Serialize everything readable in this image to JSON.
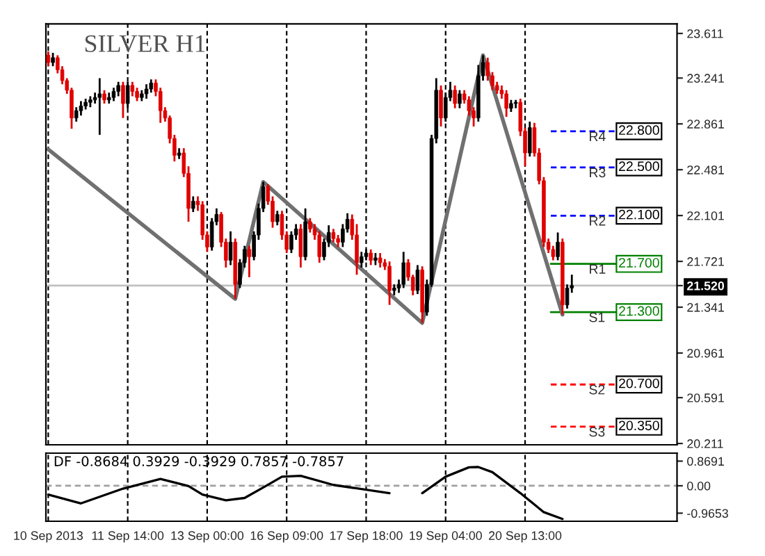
{
  "chart_data": [
    {
      "type": "candlestick",
      "title": "SILVER H1",
      "categories": [
        null,
        null,
        null,
        null,
        null,
        null,
        null,
        null,
        null,
        null,
        null,
        null,
        null,
        null,
        null,
        null,
        null,
        null,
        null,
        null,
        null,
        null,
        null,
        null,
        null,
        null,
        null,
        null,
        null,
        null,
        null,
        null,
        null,
        null,
        null,
        null,
        null,
        null,
        null,
        null,
        null,
        null,
        null,
        null,
        null,
        null,
        null,
        null,
        null,
        null,
        null,
        null,
        null,
        null,
        null,
        null,
        null,
        null,
        null,
        null,
        null,
        null,
        null,
        null,
        null,
        null,
        null,
        null,
        null,
        null,
        null,
        null,
        null,
        null,
        null,
        null,
        null,
        null,
        null,
        null,
        null,
        null,
        null,
        null,
        null,
        null,
        null,
        null,
        null,
        null,
        null,
        null,
        null,
        null,
        null,
        null,
        null,
        null,
        null,
        null,
        null,
        null,
        null,
        null,
        null,
        null,
        null,
        null,
        null,
        null,
        null,
        null,
        null,
        null,
        null,
        null,
        null,
        null,
        null,
        null,
        null,
        null,
        null,
        null,
        null,
        null,
        null,
        null,
        null,
        null,
        null,
        null,
        null,
        null,
        null
      ],
      "ohlc": [
        [
          23.43,
          23.46,
          23.34,
          23.37
        ],
        [
          23.37,
          23.45,
          23.34,
          23.41
        ],
        [
          23.41,
          23.43,
          23.28,
          23.31
        ],
        [
          23.31,
          23.34,
          23.19,
          23.22
        ],
        [
          23.22,
          23.24,
          23.11,
          23.14
        ],
        [
          23.14,
          23.16,
          22.82,
          22.91
        ],
        [
          22.91,
          23.0,
          22.88,
          22.97
        ],
        [
          22.97,
          23.05,
          22.93,
          23.01
        ],
        [
          23.01,
          23.07,
          22.98,
          23.04
        ],
        [
          23.04,
          23.09,
          23.0,
          23.06
        ],
        [
          23.06,
          23.12,
          23.03,
          23.08
        ],
        [
          23.08,
          23.24,
          22.77,
          23.11
        ],
        [
          23.11,
          23.14,
          23.03,
          23.06
        ],
        [
          23.06,
          23.12,
          23.03,
          23.08
        ],
        [
          23.08,
          23.16,
          23.05,
          23.13
        ],
        [
          23.13,
          23.21,
          23.09,
          23.18
        ],
        [
          23.18,
          23.21,
          22.91,
          23.03
        ],
        [
          23.03,
          23.21,
          22.99,
          23.18
        ],
        [
          23.18,
          23.21,
          23.09,
          23.13
        ],
        [
          23.13,
          23.16,
          23.05,
          23.08
        ],
        [
          23.08,
          23.14,
          23.05,
          23.11
        ],
        [
          23.11,
          23.19,
          23.07,
          23.15
        ],
        [
          23.15,
          23.23,
          23.12,
          23.2
        ],
        [
          23.2,
          23.23,
          23.09,
          23.13
        ],
        [
          23.13,
          23.16,
          22.87,
          22.97
        ],
        [
          22.97,
          23.0,
          22.88,
          22.91
        ],
        [
          22.91,
          22.93,
          22.7,
          22.74
        ],
        [
          22.74,
          22.77,
          22.55,
          22.6
        ],
        [
          22.6,
          22.66,
          22.57,
          22.62
        ],
        [
          22.62,
          22.66,
          22.42,
          22.45
        ],
        [
          22.45,
          22.51,
          22.05,
          22.16
        ],
        [
          22.16,
          22.26,
          22.13,
          22.22
        ],
        [
          22.22,
          22.26,
          22.14,
          22.19
        ],
        [
          22.19,
          22.22,
          21.9,
          21.94
        ],
        [
          21.94,
          21.97,
          21.8,
          21.84
        ],
        [
          21.84,
          22.08,
          21.81,
          22.05
        ],
        [
          22.05,
          22.16,
          22.02,
          22.11
        ],
        [
          22.11,
          22.13,
          21.84,
          21.88
        ],
        [
          21.88,
          21.91,
          21.67,
          21.73
        ],
        [
          21.73,
          21.97,
          21.69,
          21.88
        ],
        [
          21.88,
          21.91,
          21.41,
          21.53
        ],
        [
          21.53,
          21.74,
          21.5,
          21.71
        ],
        [
          21.71,
          21.85,
          21.67,
          21.82
        ],
        [
          21.82,
          21.85,
          21.59,
          21.76
        ],
        [
          21.76,
          21.97,
          21.73,
          21.94
        ],
        [
          21.94,
          22.2,
          21.9,
          22.16
        ],
        [
          22.16,
          22.38,
          22.13,
          22.34
        ],
        [
          22.34,
          22.36,
          22.19,
          22.22
        ],
        [
          22.22,
          22.26,
          22.0,
          22.05
        ],
        [
          22.05,
          22.14,
          22.02,
          22.11
        ],
        [
          22.11,
          22.14,
          21.9,
          21.94
        ],
        [
          21.94,
          21.97,
          21.79,
          21.82
        ],
        [
          21.82,
          21.97,
          21.79,
          21.94
        ],
        [
          21.94,
          22.03,
          21.9,
          21.99
        ],
        [
          21.99,
          22.03,
          21.67,
          21.76
        ],
        [
          21.76,
          22.16,
          21.73,
          22.05
        ],
        [
          22.05,
          22.08,
          21.96,
          21.99
        ],
        [
          21.99,
          22.03,
          21.9,
          21.94
        ],
        [
          21.94,
          21.97,
          21.71,
          21.76
        ],
        [
          21.76,
          21.91,
          21.73,
          21.88
        ],
        [
          21.88,
          22.02,
          21.84,
          21.96
        ],
        [
          21.96,
          21.99,
          21.88,
          21.91
        ],
        [
          21.91,
          21.94,
          21.84,
          21.88
        ],
        [
          21.88,
          22.03,
          21.84,
          21.99
        ],
        [
          21.99,
          22.12,
          21.96,
          22.07
        ],
        [
          22.07,
          22.11,
          21.9,
          21.94
        ],
        [
          21.94,
          22.03,
          21.61,
          21.71
        ],
        [
          21.71,
          21.8,
          21.67,
          21.76
        ],
        [
          21.76,
          21.82,
          21.73,
          21.79
        ],
        [
          21.79,
          21.82,
          21.69,
          21.73
        ],
        [
          21.73,
          21.79,
          21.69,
          21.75
        ],
        [
          21.75,
          21.79,
          21.67,
          21.71
        ],
        [
          21.71,
          21.74,
          21.65,
          21.68
        ],
        [
          21.68,
          21.72,
          21.36,
          21.48
        ],
        [
          21.48,
          21.53,
          21.44,
          21.5
        ],
        [
          21.5,
          21.57,
          21.46,
          21.53
        ],
        [
          21.53,
          21.8,
          21.5,
          21.71
        ],
        [
          21.71,
          21.74,
          21.56,
          21.59
        ],
        [
          21.59,
          21.61,
          21.44,
          21.48
        ],
        [
          21.48,
          21.69,
          21.45,
          21.65
        ],
        [
          21.65,
          21.68,
          21.21,
          21.3
        ],
        [
          21.3,
          21.57,
          21.27,
          21.53
        ],
        [
          21.53,
          22.77,
          21.51,
          22.74
        ],
        [
          22.74,
          23.24,
          22.7,
          23.14
        ],
        [
          23.14,
          23.18,
          22.84,
          22.91
        ],
        [
          22.91,
          23.12,
          22.88,
          23.08
        ],
        [
          23.08,
          23.21,
          23.05,
          23.14
        ],
        [
          23.14,
          23.18,
          22.99,
          23.03
        ],
        [
          23.03,
          23.14,
          22.99,
          23.11
        ],
        [
          23.11,
          23.14,
          23.03,
          23.06
        ],
        [
          23.06,
          23.09,
          22.93,
          22.97
        ],
        [
          22.97,
          23.0,
          22.84,
          22.91
        ],
        [
          22.91,
          23.35,
          22.88,
          23.26
        ],
        [
          23.26,
          23.43,
          23.22,
          23.37
        ],
        [
          23.37,
          23.41,
          23.22,
          23.26
        ],
        [
          23.26,
          23.29,
          23.14,
          23.18
        ],
        [
          23.18,
          23.21,
          23.11,
          23.14
        ],
        [
          23.14,
          23.18,
          23.07,
          23.11
        ],
        [
          23.11,
          23.14,
          22.92,
          22.99
        ],
        [
          22.99,
          23.06,
          22.96,
          23.03
        ],
        [
          23.03,
          23.06,
          22.99,
          23.04
        ],
        [
          23.04,
          23.07,
          22.76,
          22.8
        ],
        [
          22.8,
          22.83,
          22.51,
          22.62
        ],
        [
          22.62,
          22.88,
          22.59,
          22.83
        ],
        [
          22.83,
          22.87,
          22.59,
          22.62
        ],
        [
          22.62,
          22.66,
          22.36,
          22.39
        ],
        [
          22.39,
          22.42,
          21.84,
          21.88
        ],
        [
          21.88,
          21.91,
          21.79,
          21.82
        ],
        [
          21.82,
          21.85,
          21.73,
          21.76
        ],
        [
          21.76,
          21.96,
          21.73,
          21.88
        ],
        [
          21.88,
          21.91,
          21.28,
          21.36
        ],
        [
          21.36,
          21.53,
          21.33,
          21.5
        ],
        [
          21.5,
          21.61,
          21.46,
          21.52
        ],
        null,
        null,
        null,
        null,
        null,
        null,
        null,
        null,
        null,
        null,
        null,
        null,
        null,
        null,
        null,
        null,
        null,
        null,
        null,
        null,
        null,
        null
      ],
      "colors": [
        "#e00000",
        "#000000",
        "#e00000",
        "#e00000",
        "#e00000",
        "#e00000",
        "#000000",
        "#000000",
        "#000000",
        "#000000",
        "#000000",
        "#000000",
        "#e00000",
        "#000000",
        "#000000",
        "#000000",
        "#e00000",
        "#000000",
        "#e00000",
        "#e00000",
        "#000000",
        "#000000",
        "#000000",
        "#e00000",
        "#e00000",
        "#e00000",
        "#e00000",
        "#e00000",
        "#000000",
        "#e00000",
        "#e00000",
        "#000000",
        "#e00000",
        "#e00000",
        "#e00000",
        "#000000",
        "#000000",
        "#e00000",
        "#e00000",
        "#000000",
        "#e00000",
        "#000000",
        "#000000",
        "#e00000",
        "#000000",
        "#000000",
        "#000000",
        "#e00000",
        "#e00000",
        "#000000",
        "#e00000",
        "#e00000",
        "#000000",
        "#000000",
        "#e00000",
        "#000000",
        "#e00000",
        "#e00000",
        "#e00000",
        "#000000",
        "#000000",
        "#e00000",
        "#e00000",
        "#000000",
        "#000000",
        "#e00000",
        "#e00000",
        "#000000",
        "#000000",
        "#e00000",
        "#000000",
        "#e00000",
        "#e00000",
        "#e00000",
        "#000000",
        "#000000",
        "#000000",
        "#e00000",
        "#e00000",
        "#000000",
        "#e00000",
        "#000000",
        "#000000",
        "#000000",
        "#e00000",
        "#000000",
        "#000000",
        "#e00000",
        "#000000",
        "#e00000",
        "#e00000",
        "#e00000",
        "#000000",
        "#000000",
        "#e00000",
        "#e00000",
        "#e00000",
        "#e00000",
        "#e00000",
        "#000000",
        "#000000",
        "#e00000",
        "#e00000",
        "#000000",
        "#e00000",
        "#e00000",
        "#e00000",
        "#e00000",
        "#e00000",
        "#000000",
        "#e00000",
        "#000000",
        "#000000",
        null,
        null,
        null,
        null,
        null,
        null,
        null,
        null,
        null,
        null,
        null,
        null,
        null,
        null,
        null,
        null,
        null,
        null,
        null,
        null,
        null,
        null
      ],
      "series": [
        {
          "type": "line",
          "color": "#707070",
          "values": [
            22.65,
            null,
            null,
            null,
            null,
            null,
            null,
            null,
            null,
            null,
            null,
            null,
            null,
            null,
            null,
            null,
            null,
            null,
            null,
            null,
            null,
            null,
            null,
            null,
            null,
            null,
            null,
            null,
            null,
            null,
            null,
            null,
            null,
            null,
            null,
            null,
            null,
            null,
            null,
            null,
            21.41,
            null,
            null,
            null,
            null,
            null,
            22.38,
            null,
            null,
            null,
            null,
            null,
            null,
            null,
            null,
            null,
            null,
            null,
            null,
            null,
            null,
            null,
            null,
            null,
            null,
            null,
            null,
            null,
            null,
            null,
            null,
            null,
            null,
            null,
            null,
            null,
            null,
            null,
            null,
            null,
            21.21,
            null,
            null,
            null,
            null,
            null,
            null,
            null,
            null,
            null,
            null,
            null,
            null,
            23.43,
            null,
            null,
            null,
            null,
            null,
            null,
            null,
            null,
            null,
            null,
            null,
            null,
            null,
            null,
            null,
            null,
            21.28,
            null,
            null,
            null,
            null,
            null,
            null,
            null,
            null,
            null,
            null,
            null,
            null,
            null,
            null,
            null,
            null,
            null,
            null,
            null,
            null,
            null,
            null,
            null,
            null
          ]
        }
      ],
      "ylim": [
        20.2,
        23.69
      ],
      "yticks": [
        23.611,
        23.241,
        22.861,
        22.481,
        22.101,
        21.721,
        21.341,
        20.961,
        20.591,
        20.211,
        {
          "value": 21.52,
          "label": "21.520"
        }
      ],
      "tick_labels": "y",
      "grid": "x",
      "ref_lines": [
        {
          "axis": "y",
          "value": 21.52,
          "color": "#c0c0c0",
          "line_style": "solid"
        },
        {
          "axis": "y",
          "value": 22.8,
          "label": "22.800",
          "color": "#0000ff",
          "line_style": "dashed"
        },
        {
          "axis": "y",
          "value": 22.5,
          "label": "22.500",
          "color": "#0000ff",
          "line_style": "dashed"
        },
        {
          "axis": "y",
          "value": 22.1,
          "label": "22.100",
          "color": "#0000ff",
          "line_style": "dashed"
        },
        {
          "axis": "y",
          "value": 21.7,
          "label": "21.700",
          "color": "#008000",
          "line_style": "solid"
        },
        {
          "axis": "y",
          "value": 21.3,
          "label": "21.300",
          "color": "#008000",
          "line_style": "solid"
        },
        {
          "axis": "y",
          "value": 20.7,
          "label": "20.700",
          "color": "#ff0000",
          "line_style": "dashed"
        },
        {
          "axis": "y",
          "value": 20.35,
          "label": "20.350",
          "color": "#ff0000",
          "line_style": "dashed"
        }
      ],
      "annotations": [
        {
          "text": "R4",
          "y": 22.8
        },
        {
          "text": "R3",
          "y": 22.5
        },
        {
          "text": "R2",
          "y": 22.1
        },
        {
          "text": "R1",
          "y": 21.7
        },
        {
          "text": "S1",
          "y": 21.3
        },
        {
          "text": "S2",
          "y": 20.7
        },
        {
          "text": "S3",
          "y": 20.35
        }
      ]
    },
    {
      "type": "line",
      "title": "DF -0.8684 0.3929 -0.3929 0.7857 -0.7857",
      "categories": [
        "10 Sep 2013",
        null,
        null,
        null,
        null,
        null,
        null,
        null,
        null,
        null,
        null,
        null,
        null,
        null,
        null,
        null,
        null,
        "11 Sep 14:00",
        null,
        null,
        null,
        null,
        null,
        null,
        null,
        null,
        null,
        null,
        null,
        null,
        null,
        null,
        null,
        null,
        "13 Sep 00:00",
        null,
        null,
        null,
        null,
        null,
        null,
        null,
        null,
        null,
        null,
        null,
        null,
        null,
        null,
        null,
        null,
        "16 Sep 09:00",
        null,
        null,
        null,
        null,
        null,
        null,
        null,
        null,
        null,
        null,
        null,
        null,
        null,
        null,
        null,
        null,
        "17 Sep 18:00",
        null,
        null,
        null,
        null,
        null,
        null,
        null,
        null,
        null,
        null,
        null,
        null,
        null,
        null,
        null,
        null,
        "19 Sep 04:00",
        null,
        null,
        null,
        null,
        null,
        null,
        null,
        null,
        null,
        null,
        null,
        null,
        null,
        null,
        null,
        null,
        "20 Sep 13:00",
        null,
        null,
        null,
        null,
        null,
        null,
        null,
        null,
        null,
        null,
        null,
        null,
        null,
        null,
        null,
        null,
        null,
        null,
        null,
        null,
        null,
        null,
        null,
        null,
        null,
        null,
        null,
        null,
        null,
        null,
        null,
        null
      ],
      "series": [
        {
          "color": "#000000",
          "values": [
            -0.31,
            null,
            null,
            null,
            null,
            null,
            null,
            -0.62,
            null,
            null,
            null,
            null,
            null,
            null,
            null,
            null,
            -0.1,
            null,
            null,
            null,
            null,
            null,
            null,
            null,
            0.24,
            null,
            null,
            null,
            null,
            null,
            -0.01,
            null,
            null,
            -0.31,
            null,
            null,
            null,
            null,
            -0.51,
            null,
            null,
            null,
            -0.43,
            null,
            null,
            null,
            -0.06,
            null,
            null,
            null,
            0.32,
            null,
            null,
            null,
            0.35,
            null,
            null,
            null,
            null,
            null,
            null,
            0.03,
            null,
            null,
            null,
            null,
            null,
            null,
            null,
            null,
            null,
            null,
            null,
            -0.26,
            null,
            null,
            null,
            null,
            null,
            null,
            null,
            null,
            null,
            null,
            null,
            null,
            null,
            null,
            null,
            null,
            null,
            null,
            null,
            null,
            null,
            null,
            null,
            null,
            null,
            null,
            null,
            null,
            null,
            null,
            null,
            null,
            null,
            null,
            null,
            null,
            null,
            null,
            null,
            null,
            null,
            null,
            null,
            null,
            null,
            null,
            null,
            null,
            null,
            null,
            null,
            null,
            null,
            null,
            null,
            null,
            null,
            null,
            null,
            null,
            null
          ]
        },
        {
          "color": "#000000",
          "values": [
            null,
            null,
            null,
            null,
            null,
            null,
            null,
            null,
            null,
            null,
            null,
            null,
            null,
            null,
            null,
            null,
            null,
            null,
            null,
            null,
            null,
            null,
            null,
            null,
            null,
            null,
            null,
            null,
            null,
            null,
            null,
            null,
            null,
            null,
            null,
            null,
            null,
            null,
            null,
            null,
            null,
            null,
            null,
            null,
            null,
            null,
            null,
            null,
            null,
            null,
            null,
            null,
            null,
            null,
            null,
            null,
            null,
            null,
            null,
            null,
            null,
            null,
            null,
            null,
            null,
            null,
            null,
            null,
            null,
            null,
            null,
            null,
            null,
            null,
            null,
            null,
            null,
            null,
            null,
            null,
            -0.26,
            null,
            null,
            null,
            null,
            0.32,
            null,
            null,
            null,
            null,
            0.65,
            null,
            0.66,
            null,
            null,
            0.48,
            null,
            null,
            null,
            null,
            null,
            -0.26,
            null,
            null,
            null,
            null,
            -0.93,
            null,
            null,
            null,
            -1.17,
            null,
            null,
            null,
            null,
            null,
            null,
            null,
            null,
            null,
            null,
            null,
            null,
            null,
            null,
            null,
            null,
            null,
            null,
            null,
            null,
            null,
            null,
            null,
            null
          ]
        }
      ],
      "ylim": [
        -1.25,
        1.15
      ],
      "yticks": [
        0.8691,
        {
          "value": 0,
          "label": "0.00"
        },
        -0.9653
      ],
      "grid": "x",
      "ref_lines": [
        {
          "axis": "y",
          "value": 0,
          "color": "#a0a0a0",
          "line_style": "dashed"
        }
      ]
    }
  ]
}
